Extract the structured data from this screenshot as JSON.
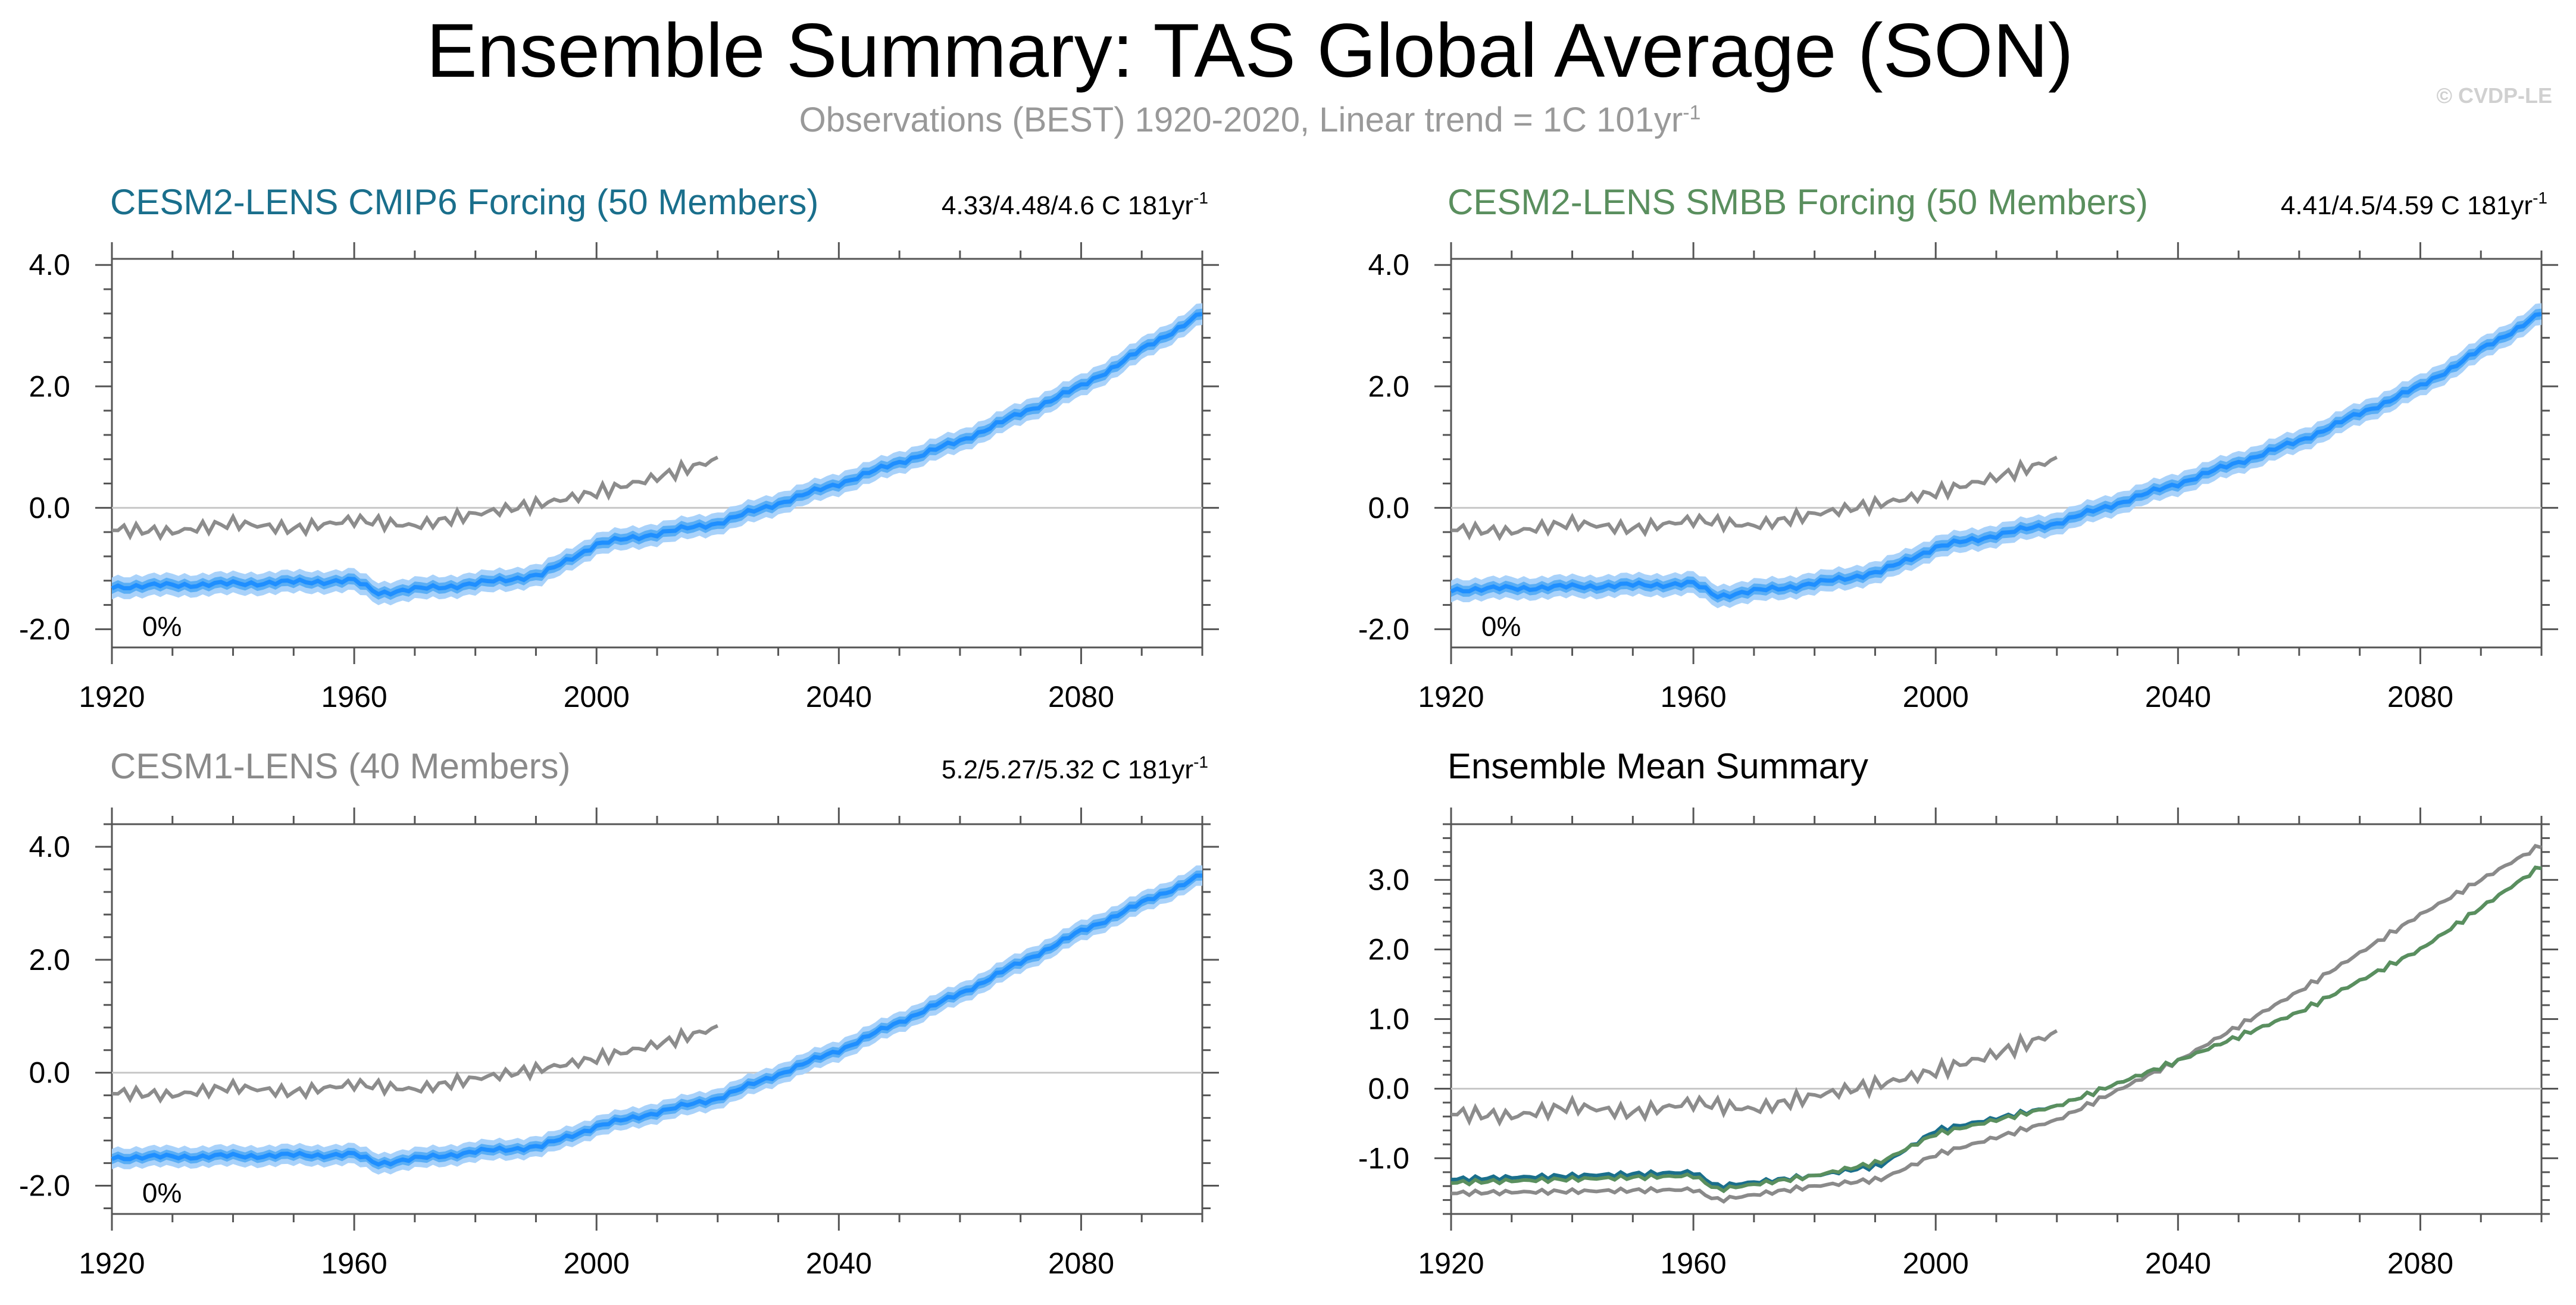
{
  "header": {
    "title": "Ensemble Summary: TAS Global Average (SON)",
    "subtitle_main": "Observations (BEST) 1920-2020, Linear trend = 1C 101yr",
    "subtitle_sup": "-1",
    "credit": "© CVDP-LE"
  },
  "colors": {
    "cmip6": "#1a6f8c",
    "smbb": "#5a8f5e",
    "cesm1": "#8a8a8a",
    "obs": "#8c8c8c",
    "ensemble_mean": "#1f8fff",
    "spread_inner": "#5aaef5",
    "spread_outer": "#a9d2fa"
  },
  "chart_data": [
    {
      "type": "line",
      "title": "CESM2-LENS CMIP6 Forcing (50 Members)",
      "trend_label": "4.33/4.48/4.6 C 181yr",
      "trend_sup": "-1",
      "percent_label": "0%",
      "xlim": [
        1920,
        2100
      ],
      "ylim": [
        -2.3,
        4.1
      ],
      "xticks": [
        1920,
        1960,
        2000,
        2040,
        2080
      ],
      "yticks": [
        -2.0,
        0.0,
        2.0,
        4.0
      ],
      "ytick_labels": [
        "-2.0",
        "0.0",
        "2.0",
        "4.0"
      ],
      "zero_line": true,
      "series": [
        {
          "role": "spread",
          "x": [
            1920,
            1960,
            1964,
            1980,
            1991,
            2000,
            2020,
            2040,
            2060,
            2080,
            2100
          ],
          "values": [
            -1.3,
            -1.2,
            -1.4,
            -1.25,
            -1.1,
            -0.6,
            -0.25,
            0.4,
            1.1,
            2.0,
            3.2
          ]
        },
        {
          "role": "observations",
          "x": [
            1920,
            1930,
            1940,
            1950,
            1960,
            1970,
            1980,
            1990,
            2000,
            2010,
            2020
          ],
          "values": [
            -0.35,
            -0.4,
            -0.25,
            -0.35,
            -0.2,
            -0.3,
            -0.1,
            0.05,
            0.25,
            0.5,
            0.8
          ]
        }
      ]
    },
    {
      "type": "line",
      "title": "CESM2-LENS SMBB Forcing (50 Members)",
      "trend_label": "4.41/4.5/4.59 C 181yr",
      "trend_sup": "-1",
      "percent_label": "0%",
      "xlim": [
        1920,
        2100
      ],
      "ylim": [
        -2.3,
        4.1
      ],
      "xticks": [
        1920,
        1960,
        2000,
        2040,
        2080
      ],
      "yticks": [
        -2.0,
        0.0,
        2.0,
        4.0
      ],
      "ytick_labels": [
        "-2.0",
        "0.0",
        "2.0",
        "4.0"
      ],
      "zero_line": true,
      "series": [
        {
          "role": "spread",
          "x": [
            1920,
            1960,
            1964,
            1980,
            1991,
            2000,
            2020,
            2040,
            2060,
            2080,
            2100
          ],
          "values": [
            -1.35,
            -1.25,
            -1.45,
            -1.25,
            -1.05,
            -0.65,
            -0.25,
            0.4,
            1.1,
            2.0,
            3.2
          ]
        },
        {
          "role": "observations",
          "x": [
            1920,
            1930,
            1940,
            1950,
            1960,
            1970,
            1980,
            1990,
            2000,
            2010,
            2020
          ],
          "values": [
            -0.35,
            -0.4,
            -0.25,
            -0.35,
            -0.2,
            -0.3,
            -0.1,
            0.05,
            0.25,
            0.5,
            0.8
          ]
        }
      ]
    },
    {
      "type": "line",
      "title": "CESM1-LENS (40 Members)",
      "trend_label": "5.2/5.27/5.32 C 181yr",
      "trend_sup": "-1",
      "percent_label": "0%",
      "xlim": [
        1920,
        2100
      ],
      "ylim": [
        -2.5,
        4.4
      ],
      "xticks": [
        1920,
        1960,
        2000,
        2040,
        2080
      ],
      "yticks": [
        -2.0,
        0.0,
        2.0,
        4.0
      ],
      "ytick_labels": [
        "-2.0",
        "0.0",
        "2.0",
        "4.0"
      ],
      "zero_line": true,
      "series": [
        {
          "role": "spread",
          "x": [
            1920,
            1960,
            1964,
            1980,
            1991,
            2000,
            2020,
            2040,
            2060,
            2080,
            2100
          ],
          "values": [
            -1.5,
            -1.45,
            -1.6,
            -1.4,
            -1.3,
            -0.95,
            -0.45,
            0.4,
            1.4,
            2.5,
            3.5
          ]
        },
        {
          "role": "observations",
          "x": [
            1920,
            1930,
            1940,
            1950,
            1960,
            1970,
            1980,
            1990,
            2000,
            2010,
            2020
          ],
          "values": [
            -0.35,
            -0.4,
            -0.25,
            -0.35,
            -0.2,
            -0.3,
            -0.1,
            0.05,
            0.25,
            0.5,
            0.8
          ]
        }
      ]
    },
    {
      "type": "line",
      "title": "Ensemble Mean Summary",
      "xlim": [
        1920,
        2100
      ],
      "ylim": [
        -1.8,
        3.8
      ],
      "xticks": [
        1920,
        1960,
        2000,
        2040,
        2080
      ],
      "yticks": [
        -1.0,
        0.0,
        1.0,
        2.0,
        3.0
      ],
      "ytick_labels": [
        "-1.0",
        "0.0",
        "1.0",
        "2.0",
        "3.0"
      ],
      "zero_line": true,
      "series": [
        {
          "role": "cesm1",
          "x": [
            1920,
            1960,
            1964,
            1980,
            1991,
            2000,
            2020,
            2040,
            2060,
            2080,
            2100
          ],
          "values": [
            -1.5,
            -1.45,
            -1.6,
            -1.4,
            -1.3,
            -0.95,
            -0.45,
            0.4,
            1.4,
            2.5,
            3.5
          ]
        },
        {
          "role": "cmip6",
          "x": [
            1920,
            1960,
            1964,
            1980,
            1991,
            2000,
            2020,
            2040,
            2060,
            2080,
            2100
          ],
          "values": [
            -1.3,
            -1.2,
            -1.4,
            -1.25,
            -1.1,
            -0.6,
            -0.25,
            0.4,
            1.1,
            2.0,
            3.2
          ]
        },
        {
          "role": "smbb",
          "x": [
            1920,
            1960,
            1964,
            1980,
            1991,
            2000,
            2020,
            2040,
            2060,
            2080,
            2100
          ],
          "values": [
            -1.35,
            -1.25,
            -1.45,
            -1.25,
            -1.05,
            -0.65,
            -0.25,
            0.4,
            1.1,
            2.0,
            3.2
          ]
        },
        {
          "role": "observations",
          "x": [
            1920,
            1930,
            1940,
            1950,
            1960,
            1970,
            1980,
            1990,
            2000,
            2010,
            2020
          ],
          "values": [
            -0.35,
            -0.4,
            -0.25,
            -0.35,
            -0.2,
            -0.3,
            -0.1,
            0.05,
            0.25,
            0.5,
            0.8
          ]
        }
      ]
    }
  ]
}
